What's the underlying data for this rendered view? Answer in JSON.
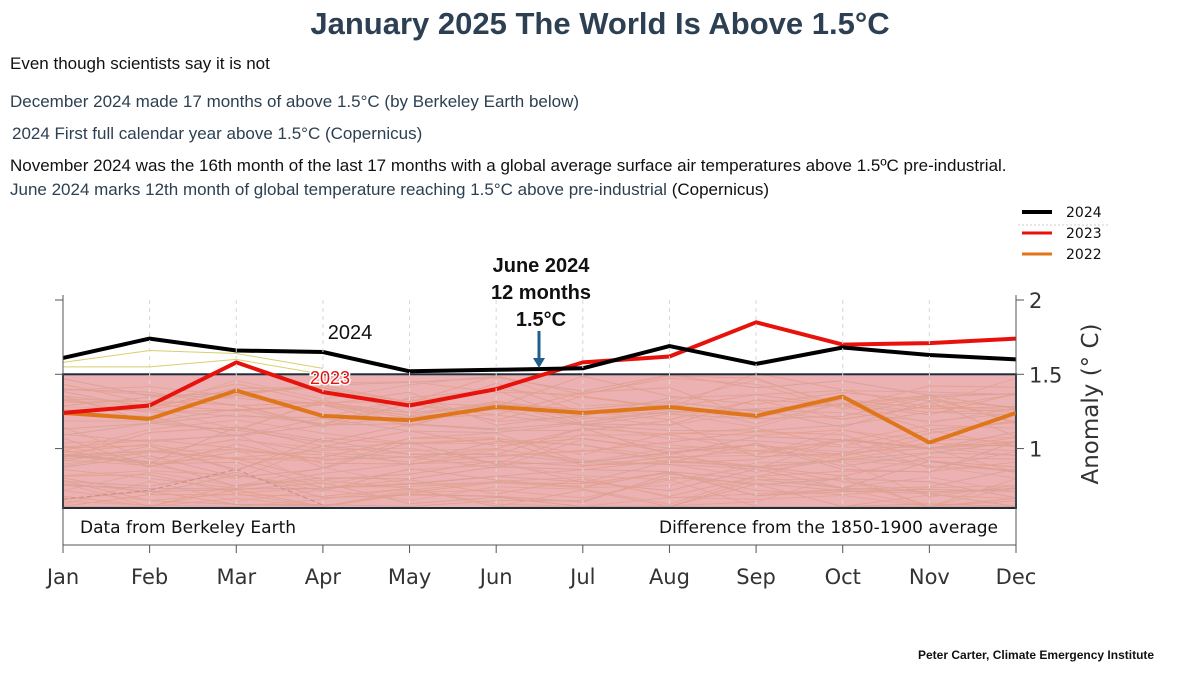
{
  "header": {
    "title": "January 2025 The World Is Above 1.5°C",
    "notes": [
      "Even though scientists say it is not",
      "December 2024 made 17 months of above 1.5°C (by Berkeley Earth below)",
      "2024 First full calendar year above 1.5°C (Copernicus)",
      "November 2024 was the 16th month of the last 17 months with a global average surface air temperatures above 1.5ºC pre-industrial.",
      "June 2024 marks 12th month of global temperature reaching 1.5°C above pre-industrial",
      "(Copernicus)"
    ]
  },
  "credit": "Peter Carter,  Climate Emergency Institute",
  "chart_data": {
    "type": "line",
    "categories": [
      "Jan",
      "Feb",
      "Mar",
      "Apr",
      "May",
      "Jun",
      "Jul",
      "Aug",
      "Sep",
      "Oct",
      "Nov",
      "Dec"
    ],
    "ylabel": "Anomaly (° C)",
    "ylim": [
      0.6,
      2.0
    ],
    "yticks": [
      "1",
      "1.5",
      "2"
    ],
    "series": [
      {
        "name": "2024",
        "color": "#000000",
        "values": [
          1.61,
          1.74,
          1.66,
          1.65,
          1.52,
          1.53,
          1.54,
          1.69,
          1.57,
          1.68,
          1.63,
          1.6
        ]
      },
      {
        "name": "2023",
        "color": "#e8120c",
        "values": [
          1.24,
          1.29,
          1.58,
          1.38,
          1.29,
          1.4,
          1.58,
          1.62,
          1.85,
          1.7,
          1.71,
          1.74
        ]
      },
      {
        "name": "2022",
        "color": "#e0761a",
        "values": [
          1.24,
          1.2,
          1.39,
          1.22,
          1.19,
          1.28,
          1.24,
          1.28,
          1.22,
          1.35,
          1.04,
          1.24
        ]
      }
    ],
    "threshold": {
      "value": 1.5,
      "band_from": 0.6,
      "color": "#e8a0a2"
    },
    "background_years_count": 60,
    "annotations": {
      "label_2024": "2024",
      "label_2023": "2023",
      "callout": [
        "June 2024",
        "12 months",
        "1.5°C"
      ],
      "source_left": "Data from Berkeley Earth",
      "source_right": "Difference from the 1850-1900 average"
    }
  }
}
